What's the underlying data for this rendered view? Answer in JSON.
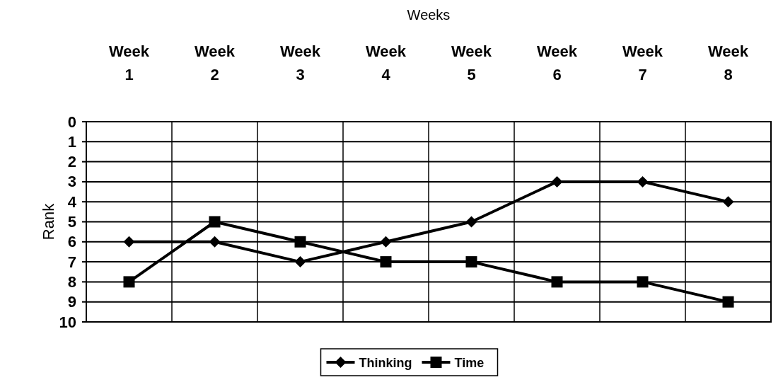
{
  "chart_data": {
    "type": "line",
    "xlabel": "Weeks",
    "ylabel": "Rank",
    "categories": [
      "Week 1",
      "Week 2",
      "Week 3",
      "Week 4",
      "Week 5",
      "Week 6",
      "Week 7",
      "Week 8"
    ],
    "ylim": [
      10,
      0
    ],
    "yticks": [
      0,
      1,
      2,
      3,
      4,
      5,
      6,
      7,
      8,
      9,
      10
    ],
    "grid": true,
    "legend": "bottom",
    "series": [
      {
        "name": "Thinking",
        "color": "#000000",
        "marker": "diamond",
        "values": [
          6,
          6,
          7,
          6,
          5,
          3,
          3,
          4
        ]
      },
      {
        "name": "Time",
        "color": "#000000",
        "marker": "square",
        "values": [
          8,
          5,
          6,
          7,
          7,
          8,
          8,
          9
        ]
      }
    ]
  }
}
